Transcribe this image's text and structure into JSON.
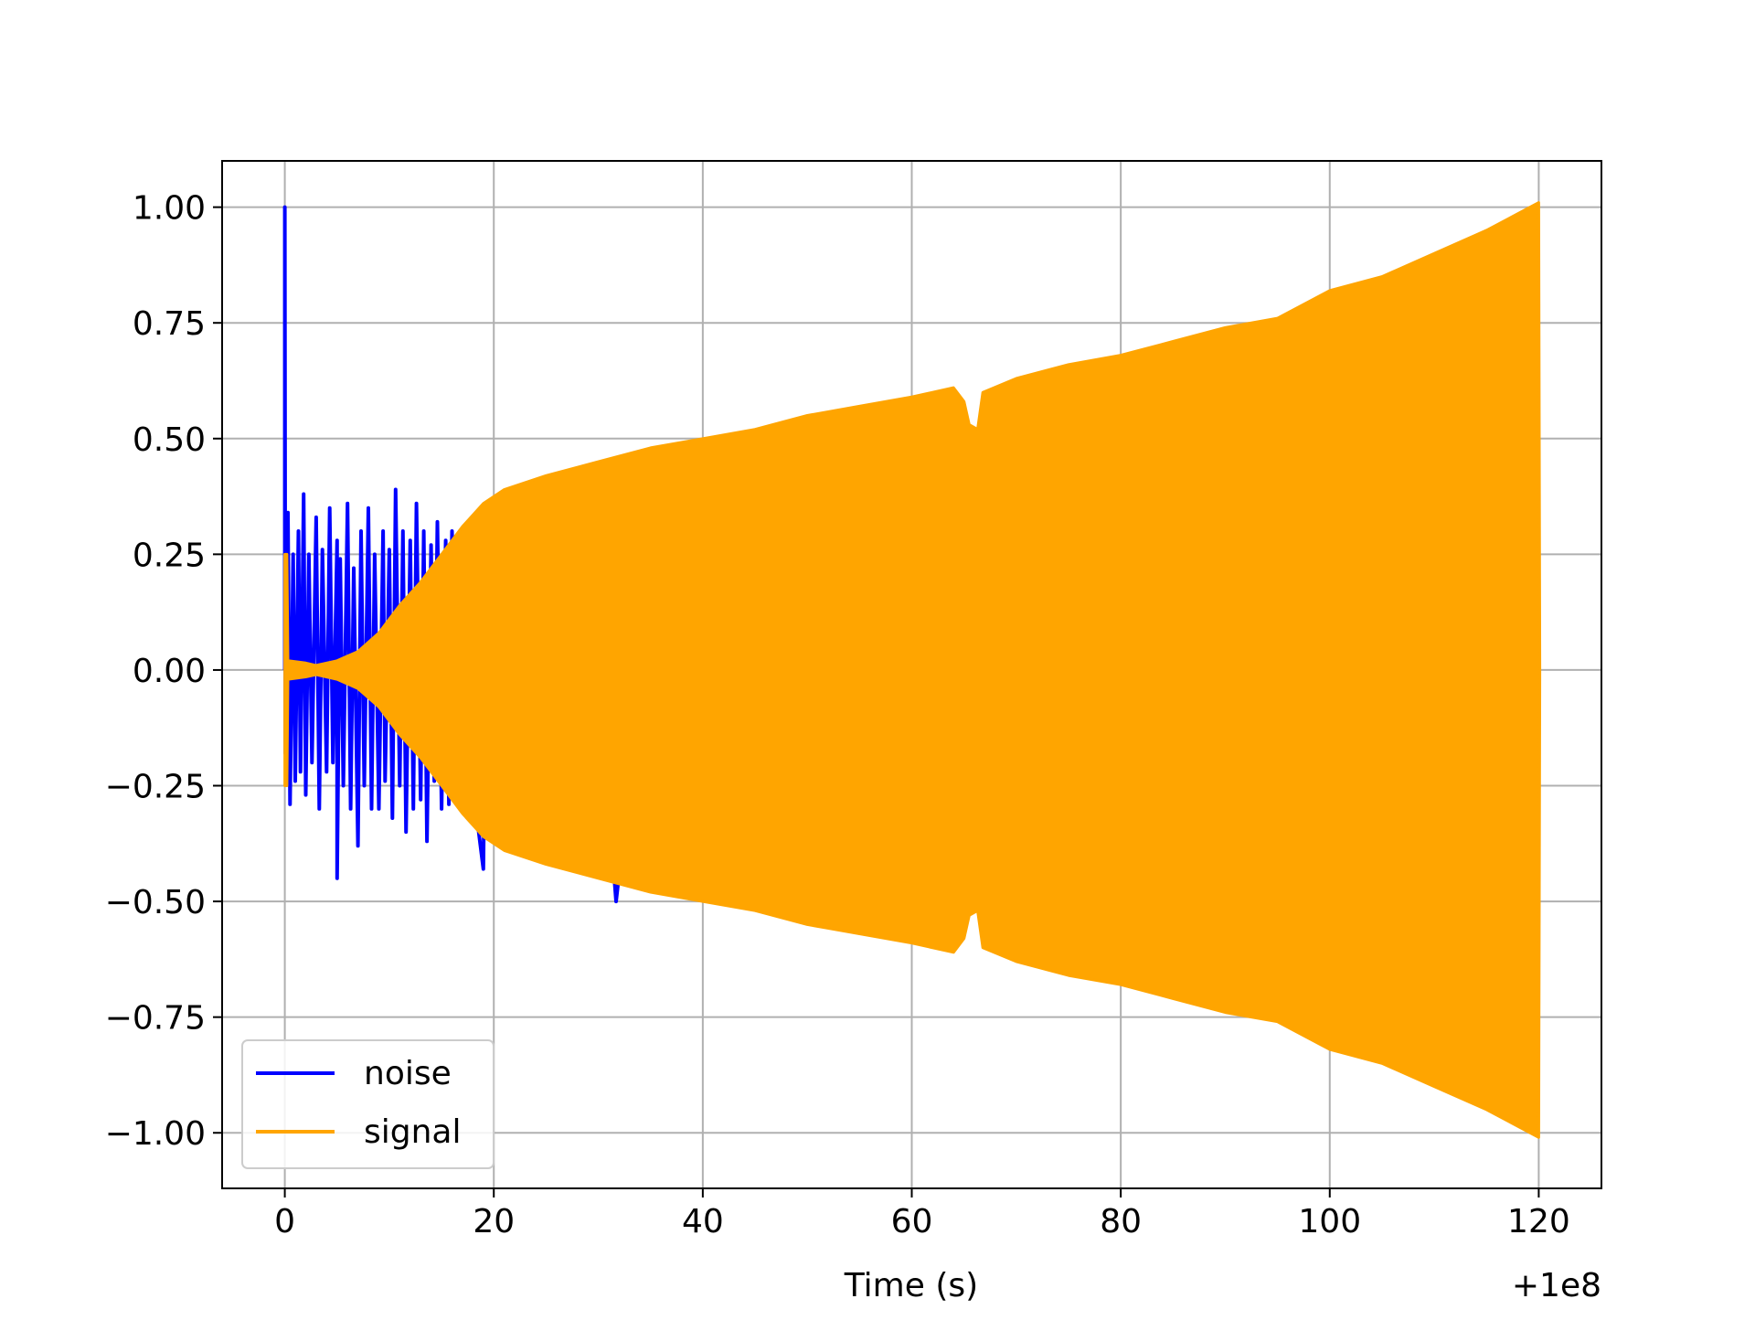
{
  "chart_data": {
    "type": "line",
    "title": "",
    "xlabel": "Time (s)",
    "ylabel": "",
    "x_offset_label": "+1e8",
    "xlim": [
      -6,
      126
    ],
    "ylim": [
      -1.12,
      1.1
    ],
    "xticks": [
      0,
      20,
      40,
      60,
      80,
      100,
      120
    ],
    "xtick_labels": [
      "0",
      "20",
      "40",
      "60",
      "80",
      "100",
      "120"
    ],
    "yticks": [
      1.0,
      0.75,
      0.5,
      0.25,
      0.0,
      -0.25,
      -0.5,
      -0.75,
      -1.0
    ],
    "ytick_labels": [
      "1.00",
      "0.75",
      "0.50",
      "0.25",
      "0.00",
      "−0.25",
      "−0.50",
      "−0.75",
      "−1.00"
    ],
    "grid": true,
    "legend_position": "lower-left",
    "series": [
      {
        "name": "noise",
        "color": "#0000ff",
        "values": [
          [
            0.0,
            0.0
          ],
          [
            0.0,
            1.0
          ],
          [
            0.05,
            -0.18
          ],
          [
            0.3,
            0.34
          ],
          [
            0.5,
            -0.29
          ],
          [
            0.8,
            0.25
          ],
          [
            1.0,
            -0.24
          ],
          [
            1.3,
            0.3
          ],
          [
            1.5,
            -0.22
          ],
          [
            1.8,
            0.38
          ],
          [
            2.0,
            -0.27
          ],
          [
            2.3,
            0.25
          ],
          [
            2.6,
            -0.2
          ],
          [
            3.0,
            0.33
          ],
          [
            3.3,
            -0.3
          ],
          [
            3.6,
            0.26
          ],
          [
            4.0,
            -0.22
          ],
          [
            4.3,
            0.35
          ],
          [
            4.6,
            -0.2
          ],
          [
            5.0,
            0.28
          ],
          [
            5.0,
            -0.45
          ],
          [
            5.3,
            0.24
          ],
          [
            5.6,
            -0.25
          ],
          [
            6.0,
            0.36
          ],
          [
            6.3,
            -0.3
          ],
          [
            6.6,
            0.22
          ],
          [
            7.0,
            -0.38
          ],
          [
            7.3,
            0.3
          ],
          [
            7.6,
            -0.25
          ],
          [
            8.0,
            0.35
          ],
          [
            8.3,
            -0.3
          ],
          [
            8.6,
            0.25
          ],
          [
            9.0,
            -0.3
          ],
          [
            9.4,
            0.3
          ],
          [
            9.6,
            -0.24
          ],
          [
            10.0,
            0.26
          ],
          [
            10.3,
            -0.32
          ],
          [
            10.6,
            0.39
          ],
          [
            11.0,
            -0.25
          ],
          [
            11.3,
            0.3
          ],
          [
            11.6,
            -0.35
          ],
          [
            12.0,
            0.28
          ],
          [
            12.3,
            -0.3
          ],
          [
            12.6,
            0.36
          ],
          [
            13.0,
            -0.28
          ],
          [
            13.3,
            0.3
          ],
          [
            13.6,
            -0.37
          ],
          [
            14.0,
            0.27
          ],
          [
            14.3,
            -0.24
          ],
          [
            14.6,
            0.32
          ],
          [
            15.0,
            -0.3
          ],
          [
            15.4,
            0.28
          ],
          [
            15.7,
            -0.29
          ],
          [
            16.0,
            0.3
          ],
          [
            16.5,
            -0.25
          ],
          [
            17.0,
            0.24
          ],
          [
            18.0,
            -0.25
          ],
          [
            19.0,
            -0.43
          ],
          [
            19.3,
            0.2
          ],
          [
            20.0,
            -0.32
          ],
          [
            22.0,
            -0.36
          ],
          [
            24.0,
            -0.4
          ],
          [
            26.0,
            -0.41
          ],
          [
            28.0,
            -0.42
          ],
          [
            30.0,
            -0.43
          ],
          [
            31.5,
            -0.44
          ],
          [
            31.7,
            -0.5
          ],
          [
            32.0,
            -0.44
          ]
        ]
      },
      {
        "name": "signal",
        "color": "#ffa500",
        "envelope": [
          [
            0.0,
            0.25
          ],
          [
            0.2,
            0.25
          ],
          [
            0.3,
            0.02
          ],
          [
            2.0,
            0.015
          ],
          [
            3.0,
            0.01
          ],
          [
            5.0,
            0.02
          ],
          [
            7.0,
            0.04
          ],
          [
            9.0,
            0.08
          ],
          [
            11.0,
            0.14
          ],
          [
            13.0,
            0.19
          ],
          [
            15.0,
            0.25
          ],
          [
            17.0,
            0.31
          ],
          [
            19.0,
            0.36
          ],
          [
            21.0,
            0.39
          ],
          [
            25.0,
            0.42
          ],
          [
            30.0,
            0.45
          ],
          [
            35.0,
            0.48
          ],
          [
            40.0,
            0.5
          ],
          [
            45.0,
            0.52
          ],
          [
            50.0,
            0.55
          ],
          [
            55.0,
            0.57
          ],
          [
            60.0,
            0.59
          ],
          [
            64.0,
            0.61
          ],
          [
            65.0,
            0.58
          ],
          [
            65.5,
            0.53
          ],
          [
            66.3,
            0.52
          ],
          [
            66.8,
            0.6
          ],
          [
            70.0,
            0.63
          ],
          [
            75.0,
            0.66
          ],
          [
            80.0,
            0.68
          ],
          [
            85.0,
            0.71
          ],
          [
            90.0,
            0.74
          ],
          [
            95.0,
            0.76
          ],
          [
            100.0,
            0.82
          ],
          [
            105.0,
            0.85
          ],
          [
            110.0,
            0.9
          ],
          [
            115.0,
            0.95
          ],
          [
            120.0,
            1.01
          ],
          [
            120.1,
            0.0
          ]
        ]
      }
    ]
  }
}
